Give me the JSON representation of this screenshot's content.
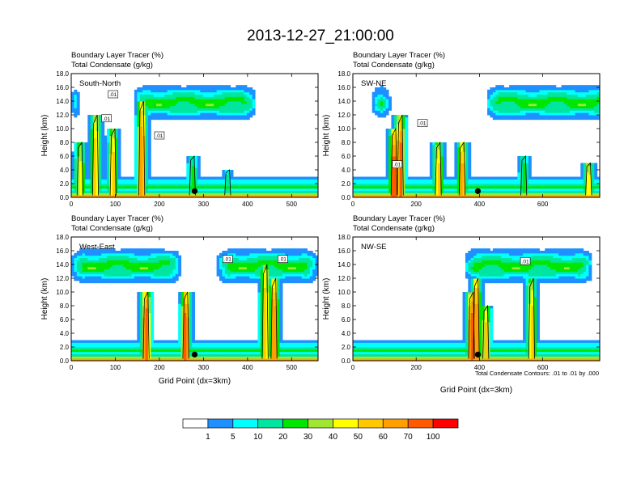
{
  "figure": {
    "title": "2013-12-27_21:00:00",
    "panel_label_1": "Boundary Layer Tracer   (%)",
    "panel_label_2": "Total Condensate   (g/kg)",
    "contour_note": "Total Condensate Contours: .01 to .01 by .000",
    "contour_marker": ".01"
  },
  "chart_data": [
    {
      "type": "heatmap",
      "name": "South-North",
      "xlabel": "",
      "ylabel": "Height (km)",
      "xlim": [
        0,
        560
      ],
      "ylim": [
        0,
        18
      ],
      "xticks": [
        "0",
        "100",
        "200",
        "300",
        "400",
        "500"
      ],
      "yticks": [
        "0.0",
        "2.0",
        "4.0",
        "6.0",
        "8.0",
        "10.0",
        "12.0",
        "14.0",
        "16.0",
        "18.0"
      ],
      "marker_x": 280,
      "anvil": [
        [
          0,
          20
        ],
        [
          140,
          420
        ]
      ],
      "updrafts": [
        [
          20,
          8,
          45
        ],
        [
          55,
          12,
          60
        ],
        [
          95,
          10,
          55
        ],
        [
          160,
          14,
          70
        ],
        [
          275,
          6,
          25
        ],
        [
          355,
          4,
          15
        ]
      ],
      "contour_labels": [
        [
          95,
          15.0
        ],
        [
          80,
          11.5
        ],
        [
          200,
          9.0
        ]
      ]
    },
    {
      "type": "heatmap",
      "name": "SW-NE",
      "xlabel": "",
      "ylabel": "Height (km)",
      "xlim": [
        0,
        780
      ],
      "ylim": [
        0,
        18
      ],
      "xticks": [
        "0",
        "200",
        "400",
        "600"
      ],
      "yticks": [
        "0.0",
        "2.0",
        "4.0",
        "6.0",
        "8.0",
        "10.0",
        "12.0",
        "14.0",
        "16.0",
        "18.0"
      ],
      "marker_x": 395,
      "anvil": [
        [
          60,
          120
        ],
        [
          420,
          900
        ]
      ],
      "updrafts": [
        [
          130,
          10,
          80
        ],
        [
          150,
          12,
          75
        ],
        [
          270,
          8,
          55
        ],
        [
          345,
          8,
          65
        ],
        [
          540,
          6,
          25
        ],
        [
          745,
          5,
          50
        ]
      ],
      "contour_labels": [
        [
          140,
          4.8
        ],
        [
          220,
          10.8
        ]
      ]
    },
    {
      "type": "heatmap",
      "name": "West-East",
      "xlabel": "Grid Point (dx=3km)",
      "ylabel": "Height (km)",
      "xlim": [
        0,
        560
      ],
      "ylim": [
        0,
        18
      ],
      "xticks": [
        "0",
        "100",
        "200",
        "300",
        "400",
        "500"
      ],
      "yticks": [
        "0.0",
        "2.0",
        "4.0",
        "6.0",
        "8.0",
        "10.0",
        "12.0",
        "14.0",
        "16.0",
        "18.0"
      ],
      "marker_x": 280,
      "anvil": [
        [
          0,
          250
        ],
        [
          330,
          560
        ]
      ],
      "updrafts": [
        [
          170,
          10,
          85
        ],
        [
          260,
          10,
          80
        ],
        [
          440,
          14,
          60
        ],
        [
          460,
          12,
          75
        ]
      ],
      "contour_labels": [
        [
          355,
          14.8
        ],
        [
          480,
          14.8
        ]
      ]
    },
    {
      "type": "heatmap",
      "name": "NW-SE",
      "xlabel": "Grid Point (dx=3km)",
      "ylabel": "Height (km)",
      "xlim": [
        0,
        780
      ],
      "ylim": [
        0,
        18
      ],
      "xticks": [
        "0",
        "200",
        "400",
        "600"
      ],
      "yticks": [
        "0.0",
        "2.0",
        "4.0",
        "6.0",
        "8.0",
        "10.0",
        "12.0",
        "14.0",
        "16.0",
        "18.0"
      ],
      "marker_x": 395,
      "anvil": [
        [
          350,
          760
        ]
      ],
      "updrafts": [
        [
          375,
          10,
          80
        ],
        [
          390,
          12,
          75
        ],
        [
          420,
          8,
          55
        ],
        [
          565,
          12,
          55
        ]
      ],
      "contour_labels": [
        [
          545,
          14.5
        ]
      ]
    }
  ],
  "colorbar": {
    "labels": [
      "1",
      "5",
      "10",
      "20",
      "30",
      "40",
      "50",
      "60",
      "70",
      "100"
    ],
    "colors": [
      "#ffffff",
      "#1e90ff",
      "#00ffff",
      "#00e6a0",
      "#00e600",
      "#a0e632",
      "#ffff00",
      "#ffc800",
      "#ffa000",
      "#ff5a00",
      "#ff0000"
    ]
  }
}
